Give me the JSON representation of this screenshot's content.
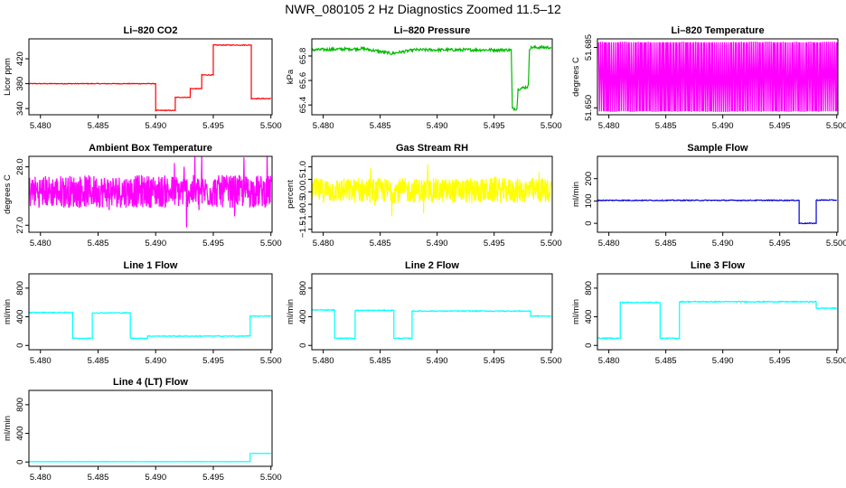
{
  "figure": {
    "title": "NWR_080105  2 Hz Diagnostics Zoomed 11.5–12"
  },
  "chart_data": [
    {
      "type": "line",
      "title": "Li–820 CO2",
      "ylabel": "Licor ppm",
      "color": "#ff0000",
      "xlim": [
        5.479,
        5.5001
      ],
      "ylim": [
        330,
        452
      ],
      "yticks": [
        340,
        380,
        420
      ],
      "xticks": [
        "5.480",
        "5.485",
        "5.490",
        "5.495",
        "5.500"
      ],
      "noise": 0.6,
      "x": [
        5.479,
        5.49,
        5.49,
        5.4917,
        5.4917,
        5.493,
        5.493,
        5.494,
        5.494,
        5.495,
        5.495,
        5.4983,
        5.4983,
        5.5
      ],
      "y": [
        380,
        380,
        337,
        337,
        358,
        358,
        372,
        372,
        394,
        394,
        442,
        442,
        356,
        356
      ]
    },
    {
      "type": "line",
      "title": "Li–820 Pressure",
      "ylabel": "kPa",
      "color": "#00bb00",
      "xlim": [
        5.479,
        5.5001
      ],
      "ylim": [
        65.32,
        65.94
      ],
      "yticks": [
        65.4,
        65.6,
        65.8
      ],
      "ytick_labels": [
        "65.4",
        "65.6",
        "65.8"
      ],
      "xticks": [
        "5.480",
        "5.485",
        "5.490",
        "5.495",
        "5.500"
      ],
      "noise": 0.012,
      "x": [
        5.479,
        5.4835,
        5.486,
        5.488,
        5.4965,
        5.4966,
        5.497,
        5.4971,
        5.498,
        5.4981,
        5.4983,
        5.5
      ],
      "y": [
        65.85,
        65.86,
        65.82,
        65.85,
        65.85,
        65.37,
        65.37,
        65.53,
        65.55,
        65.86,
        65.87,
        65.87
      ]
    },
    {
      "type": "line",
      "title": "Li–820 Temperature",
      "ylabel": "degrees C",
      "color": "#ff00ff",
      "xlim": [
        5.479,
        5.5001
      ],
      "ylim": [
        51.646,
        51.69
      ],
      "yticks": [
        51.65,
        51.685
      ],
      "ytick_labels": [
        "51.650",
        "51.685"
      ],
      "xticks": [
        "5.480",
        "5.485",
        "5.490",
        "5.495",
        "5.500"
      ],
      "pattern": "toggle",
      "low": 51.648,
      "high": 51.688
    },
    {
      "type": "line",
      "title": "Ambient Box Temperature",
      "ylabel": "degrees C",
      "color": "#ff00ff",
      "xlim": [
        5.479,
        5.5001
      ],
      "ylim": [
        26.88,
        28.18
      ],
      "yticks": [
        27.0,
        28.0
      ],
      "ytick_labels": [
        "27.0",
        "28.0"
      ],
      "xticks": [
        "5.480",
        "5.485",
        "5.490",
        "5.495",
        "5.500"
      ],
      "pattern": "noise",
      "center": 27.58,
      "amplitude": 0.28
    },
    {
      "type": "line",
      "title": "Gas Stream RH",
      "ylabel": "percent",
      "color": "#ffff00",
      "xlim": [
        5.479,
        5.5001
      ],
      "ylim": [
        -1.62,
        1.42
      ],
      "yticks": [
        -1.5,
        -1.0,
        -0.5,
        0.0,
        0.5,
        1.0
      ],
      "ytick_labels": [
        "−1.5",
        "−1.0",
        "−0.5",
        "0.0",
        "0.5",
        "1.0"
      ],
      "xticks": [
        "5.480",
        "5.485",
        "5.490",
        "5.495",
        "5.500"
      ],
      "pattern": "noise",
      "center": 0.05,
      "amplitude": 0.5
    },
    {
      "type": "line",
      "title": "Sample Flow",
      "ylabel": "ml/min",
      "color": "#0000dd",
      "xlim": [
        5.479,
        5.5001
      ],
      "ylim": [
        -40,
        300
      ],
      "yticks": [
        0,
        100,
        200
      ],
      "xticks": [
        "5.480",
        "5.485",
        "5.490",
        "5.495",
        "5.500"
      ],
      "noise": 2,
      "x": [
        5.479,
        5.4967,
        5.4967,
        5.4982,
        5.4982,
        5.5
      ],
      "y": [
        103,
        103,
        0,
        0,
        104,
        104
      ]
    },
    {
      "type": "line",
      "title": "Line 1 Flow",
      "ylabel": "ml/min",
      "color": "#00ffff",
      "xlim": [
        5.479,
        5.5001
      ],
      "ylim": [
        -60,
        1000
      ],
      "yticks": [
        0,
        400,
        800
      ],
      "xticks": [
        "5.480",
        "5.485",
        "5.490",
        "5.495",
        "5.500"
      ],
      "noise": 6,
      "x": [
        5.479,
        5.4828,
        5.4828,
        5.4845,
        5.4845,
        5.4878,
        5.4878,
        5.4893,
        5.4893,
        5.4982,
        5.4982,
        5.5
      ],
      "y": [
        460,
        460,
        100,
        100,
        455,
        455,
        100,
        100,
        130,
        130,
        410,
        410
      ]
    },
    {
      "type": "line",
      "title": "Line 2 Flow",
      "ylabel": "ml/min",
      "color": "#00ffff",
      "xlim": [
        5.479,
        5.5001
      ],
      "ylim": [
        -60,
        1000
      ],
      "yticks": [
        0,
        400,
        800
      ],
      "xticks": [
        "5.480",
        "5.485",
        "5.490",
        "5.495",
        "5.500"
      ],
      "noise": 6,
      "x": [
        5.479,
        5.481,
        5.481,
        5.4828,
        5.4828,
        5.4862,
        5.4862,
        5.4878,
        5.4878,
        5.4982,
        5.4982,
        5.5
      ],
      "y": [
        495,
        495,
        100,
        100,
        490,
        490,
        100,
        100,
        480,
        480,
        410,
        410
      ]
    },
    {
      "type": "line",
      "title": "Line 3 Flow",
      "ylabel": "ml/min",
      "color": "#00ffff",
      "xlim": [
        5.479,
        5.5001
      ],
      "ylim": [
        -60,
        1000
      ],
      "yticks": [
        0,
        400,
        800
      ],
      "xticks": [
        "5.480",
        "5.485",
        "5.490",
        "5.495",
        "5.500"
      ],
      "noise": 7,
      "x": [
        5.479,
        5.481,
        5.481,
        5.4845,
        5.4845,
        5.4862,
        5.4862,
        5.4982,
        5.4982,
        5.5
      ],
      "y": [
        100,
        100,
        600,
        600,
        100,
        100,
        610,
        610,
        520,
        520
      ]
    },
    {
      "type": "line",
      "title": "Line 4 (LT) Flow",
      "ylabel": "ml/min",
      "color": "#00ffff",
      "xlim": [
        5.479,
        5.5001
      ],
      "ylim": [
        -60,
        1000
      ],
      "yticks": [
        0,
        400,
        800
      ],
      "xticks": [
        "5.480",
        "5.485",
        "5.490",
        "5.495",
        "5.500"
      ],
      "noise": 1.5,
      "x": [
        5.479,
        5.4982,
        5.4982,
        5.5
      ],
      "y": [
        5,
        5,
        120,
        120
      ]
    }
  ]
}
